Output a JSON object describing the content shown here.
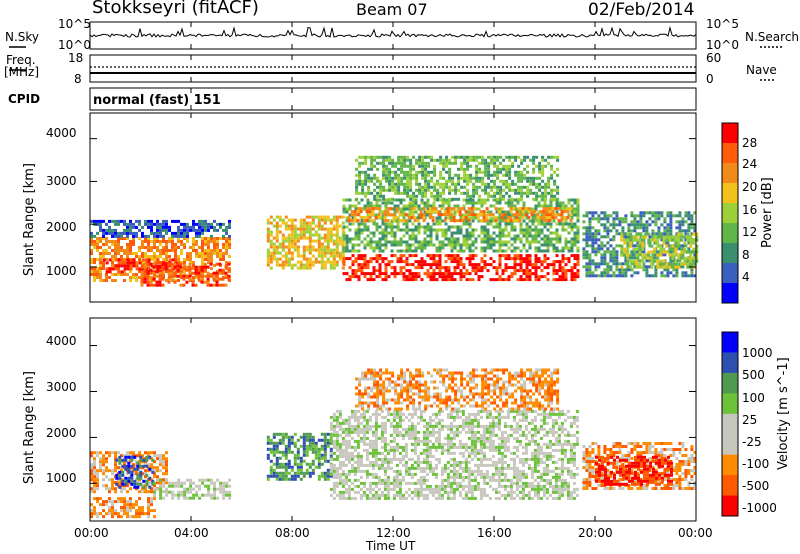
{
  "header": {
    "radar": "Stokkseyri (fitACF)",
    "beam": "Beam 07",
    "date": "02/Feb/2014"
  },
  "summary_panels": {
    "nsky_label": "N.Sky",
    "nsky_ticks": [
      "10^5",
      "10^0"
    ],
    "nsearch_label": "N.Search",
    "freq_label_1": "Freq.",
    "freq_label_2": "[MHz]",
    "freq_ticks": [
      "18",
      "8"
    ],
    "nave_label": "Nave",
    "nave_ticks": [
      "60",
      "0"
    ],
    "cpid_label": "CPID",
    "cpid_value": "normal (fast) 151"
  },
  "x_axis": {
    "label": "Time UT",
    "ticks": [
      "00:00",
      "04:00",
      "08:00",
      "12:00",
      "16:00",
      "20:00",
      "00:00"
    ]
  },
  "colors": {
    "power": [
      "#0000ff",
      "#3a5fbf",
      "#3b8f6e",
      "#61b54b",
      "#9ed039",
      "#f2c21b",
      "#f28a1b",
      "#ff5b0a",
      "#ff0000"
    ],
    "velocity": [
      "#0000ff",
      "#2e4fb0",
      "#4f9a50",
      "#6cc33a",
      "#c7c7be",
      "#c7c7be",
      "#ff8c00",
      "#ff5a00",
      "#ff0000"
    ]
  },
  "chart_data": [
    {
      "type": "heatmap",
      "title": "Power",
      "ylabel": "Slant Range [km]",
      "xlabel": "",
      "x_range_hours": [
        0,
        24
      ],
      "ylim": [
        180,
        4600
      ],
      "yticks": [
        "4000",
        "3000",
        "2000",
        "1000"
      ],
      "colorbar": {
        "label": "Power [dB]",
        "ticks": [
          "28",
          "24",
          "20",
          "16",
          "12",
          "8",
          "4"
        ]
      },
      "series": [
        {
          "name": "",
          "t0": 0.0,
          "t1": 5.5,
          "r0": 700,
          "r1": 1700,
          "level": 6
        },
        {
          "name": "",
          "t0": 0.5,
          "t1": 3.5,
          "r0": 900,
          "r1": 1200,
          "level": 8
        },
        {
          "name": "",
          "t0": 2.0,
          "t1": 5.5,
          "r0": 600,
          "r1": 1100,
          "level": 7
        },
        {
          "name": "",
          "t0": 0.0,
          "t1": 5.5,
          "r0": 1700,
          "r1": 2100,
          "level": 1
        },
        {
          "name": "",
          "t0": 7.0,
          "t1": 10.0,
          "r0": 1000,
          "r1": 2200,
          "level": 5
        },
        {
          "name": "",
          "t0": 10.0,
          "t1": 19.3,
          "r0": 1400,
          "r1": 2600,
          "level": 3
        },
        {
          "name": "",
          "t0": 10.0,
          "t1": 19.3,
          "r0": 700,
          "r1": 1300,
          "level": 8
        },
        {
          "name": "",
          "t0": 10.2,
          "t1": 19.0,
          "r0": 2100,
          "r1": 2400,
          "level": 6
        },
        {
          "name": "",
          "t0": 10.5,
          "t1": 18.5,
          "r0": 2600,
          "r1": 3600,
          "level": 3
        },
        {
          "name": "",
          "t0": 19.5,
          "t1": 24.0,
          "r0": 800,
          "r1": 2300,
          "level": 2
        },
        {
          "name": "",
          "t0": 21.0,
          "t1": 24.0,
          "r0": 1000,
          "r1": 1800,
          "level": 4
        }
      ]
    },
    {
      "type": "heatmap",
      "title": "Velocity",
      "ylabel": "Slant Range [km]",
      "xlabel": "Time UT",
      "x_range_hours": [
        0,
        24
      ],
      "ylim": [
        180,
        4600
      ],
      "yticks": [
        "4000",
        "3000",
        "2000",
        "1000"
      ],
      "colorbar": {
        "label": "Velocity [m s^-1]",
        "ticks": [
          "1000",
          "500",
          "100",
          "25",
          "-25",
          "-100",
          "-500",
          "-1000"
        ]
      },
      "series": [
        {
          "name": "",
          "t0": 0.0,
          "t1": 3.0,
          "r0": 800,
          "r1": 1700,
          "level": 6
        },
        {
          "name": "",
          "t0": 1.0,
          "t1": 2.5,
          "r0": 900,
          "r1": 1600,
          "level": 1
        },
        {
          "name": "",
          "t0": 2.5,
          "t1": 5.5,
          "r0": 700,
          "r1": 1100,
          "level": 4
        },
        {
          "name": "",
          "t0": 0.0,
          "t1": 2.5,
          "r0": 300,
          "r1": 700,
          "level": 6
        },
        {
          "name": "",
          "t0": 7.0,
          "t1": 9.5,
          "r0": 1100,
          "r1": 2100,
          "level": 2
        },
        {
          "name": "",
          "t0": 9.5,
          "t1": 19.3,
          "r0": 700,
          "r1": 2600,
          "level": 4
        },
        {
          "name": "",
          "t0": 10.5,
          "t1": 18.5,
          "r0": 2600,
          "r1": 3500,
          "level": 6
        },
        {
          "name": "",
          "t0": 19.5,
          "t1": 24.0,
          "r0": 900,
          "r1": 1900,
          "level": 6
        },
        {
          "name": "",
          "t0": 20.0,
          "t1": 23.0,
          "r0": 1000,
          "r1": 1600,
          "level": 8
        }
      ]
    }
  ]
}
